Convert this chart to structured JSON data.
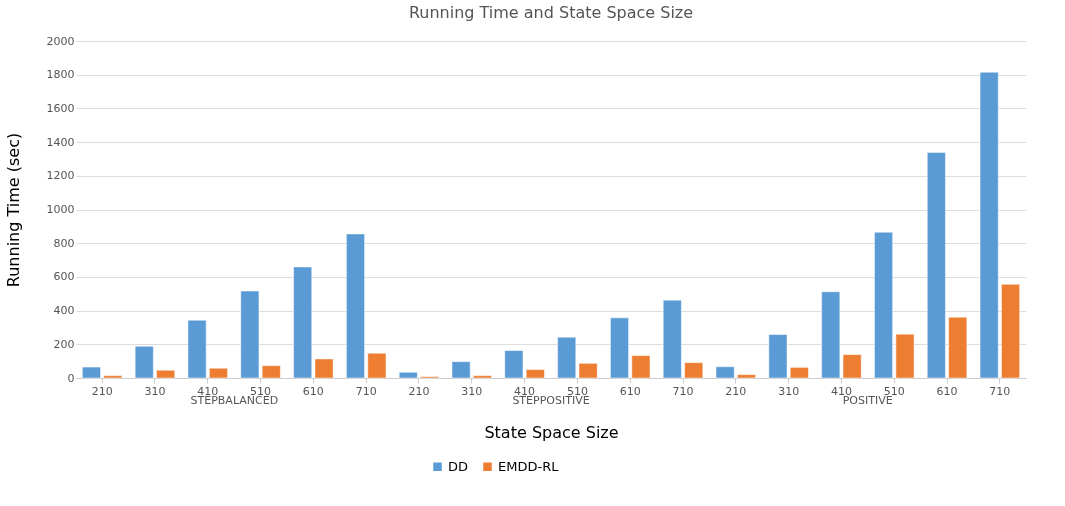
{
  "chart_data": {
    "type": "bar",
    "title": "Running Time and State Space Size",
    "xlabel": "State Space Size",
    "ylabel": "Running Time (sec)",
    "categories": [
      "210",
      "310",
      "410",
      "510",
      "610",
      "710",
      "210",
      "310",
      "410",
      "510",
      "610",
      "710",
      "210",
      "310",
      "410",
      "510",
      "610",
      "710"
    ],
    "annotations": [
      "STEPBALANCED",
      "STEPPOSITIVE",
      "POSITIVE"
    ],
    "series": [
      {
        "name": "DD",
        "color": "#5b9bd5",
        "values": [
          65,
          188,
          343,
          516,
          659,
          855,
          34,
          97,
          163,
          242,
          357,
          462,
          67,
          258,
          512,
          865,
          1339,
          1815
        ]
      },
      {
        "name": "EMDD-RL",
        "color": "#ed7d31",
        "values": [
          14,
          46,
          58,
          73,
          113,
          147,
          8,
          14,
          50,
          87,
          133,
          91,
          20,
          63,
          139,
          260,
          361,
          556
        ]
      }
    ],
    "ylim": [
      0,
      2000
    ],
    "yticks": [
      0,
      200,
      400,
      600,
      800,
      1000,
      1200,
      1400,
      1600,
      1800,
      2000
    ],
    "grid": "y",
    "legend": "bottom"
  }
}
